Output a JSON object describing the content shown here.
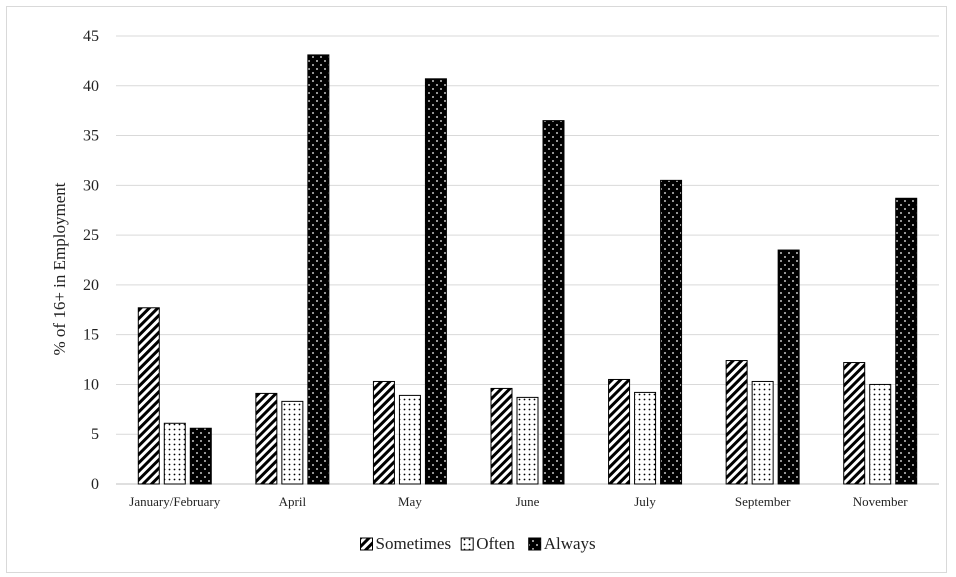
{
  "chart_data": {
    "type": "bar",
    "title": "",
    "xlabel": "",
    "ylabel": "% of 16+ in Employment",
    "ylim": [
      0,
      45
    ],
    "yticks": [
      0,
      5,
      10,
      15,
      20,
      25,
      30,
      35,
      40,
      45
    ],
    "grid": true,
    "legend_position": "bottom",
    "categories": [
      "January/February",
      "April",
      "May",
      "June",
      "July",
      "September",
      "November"
    ],
    "series": [
      {
        "name": "Sometimes",
        "pattern": "diagonal-hatch",
        "values": [
          17.7,
          9.1,
          10.3,
          9.6,
          10.5,
          12.4,
          12.2
        ]
      },
      {
        "name": "Often",
        "pattern": "dotted",
        "values": [
          6.1,
          8.3,
          8.9,
          8.7,
          9.2,
          10.3,
          10.0
        ]
      },
      {
        "name": "Always",
        "pattern": "dark-dotted",
        "values": [
          5.6,
          43.1,
          40.7,
          36.5,
          30.5,
          23.5,
          28.7
        ]
      }
    ]
  }
}
